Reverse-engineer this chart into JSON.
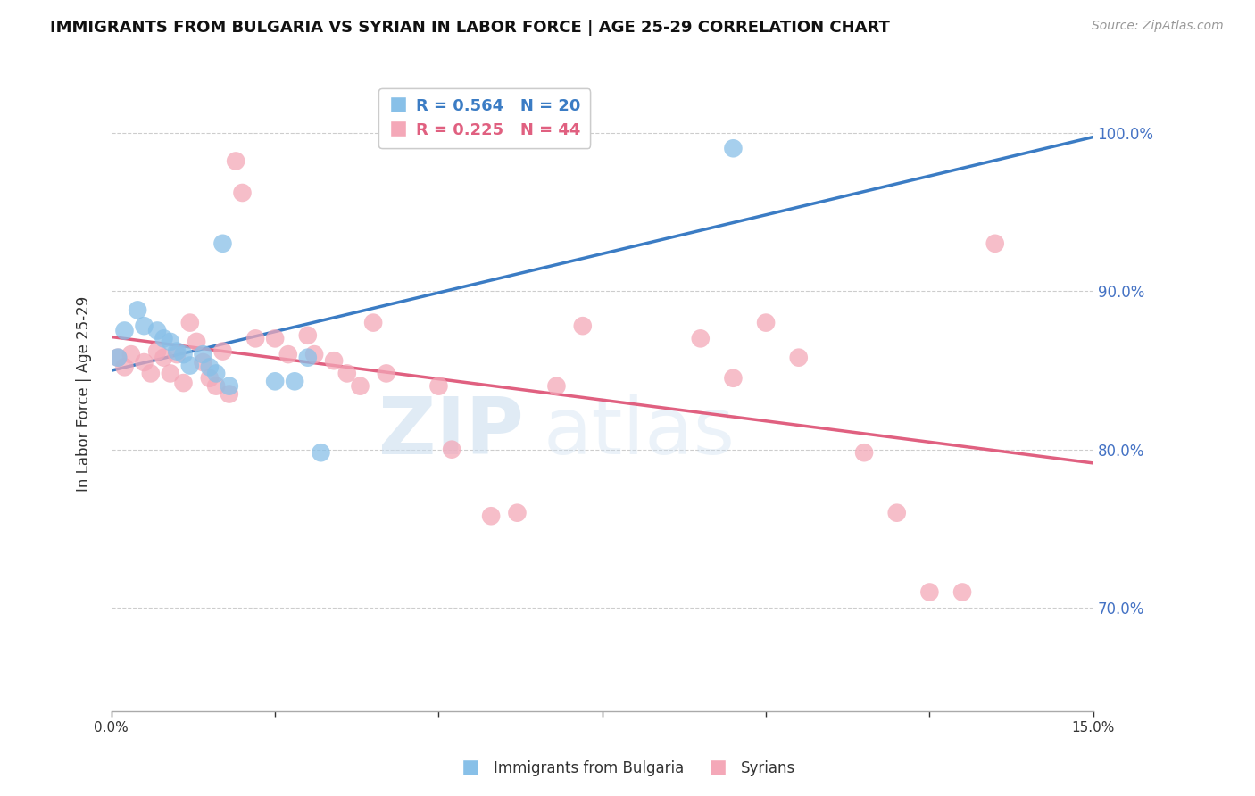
{
  "title": "IMMIGRANTS FROM BULGARIA VS SYRIAN IN LABOR FORCE | AGE 25-29 CORRELATION CHART",
  "source": "Source: ZipAtlas.com",
  "ylabel": "In Labor Force | Age 25-29",
  "xlim": [
    0.0,
    0.15
  ],
  "ylim": [
    0.635,
    1.035
  ],
  "yticks": [
    0.7,
    0.8,
    0.9,
    1.0
  ],
  "xticks": [
    0.0,
    0.025,
    0.05,
    0.075,
    0.1,
    0.125,
    0.15
  ],
  "bulgaria_R": 0.564,
  "bulgaria_N": 20,
  "syria_R": 0.225,
  "syria_N": 44,
  "bulgaria_color": "#88C0E8",
  "syria_color": "#F4A8B8",
  "bulgaria_line_color": "#3B7CC4",
  "syria_line_color": "#E06080",
  "watermark_zip": "ZIP",
  "watermark_atlas": "atlas",
  "bulgaria_x": [
    0.001,
    0.002,
    0.004,
    0.005,
    0.007,
    0.008,
    0.009,
    0.01,
    0.011,
    0.012,
    0.014,
    0.015,
    0.016,
    0.017,
    0.018,
    0.025,
    0.028,
    0.03,
    0.032,
    0.095
  ],
  "bulgaria_y": [
    0.858,
    0.875,
    0.888,
    0.878,
    0.875,
    0.87,
    0.868,
    0.862,
    0.86,
    0.853,
    0.86,
    0.852,
    0.848,
    0.93,
    0.84,
    0.843,
    0.843,
    0.858,
    0.798,
    0.99
  ],
  "syria_x": [
    0.001,
    0.002,
    0.003,
    0.005,
    0.006,
    0.007,
    0.008,
    0.009,
    0.01,
    0.011,
    0.012,
    0.013,
    0.014,
    0.015,
    0.016,
    0.017,
    0.018,
    0.019,
    0.02,
    0.022,
    0.025,
    0.027,
    0.03,
    0.031,
    0.034,
    0.036,
    0.038,
    0.04,
    0.042,
    0.05,
    0.052,
    0.058,
    0.062,
    0.068,
    0.072,
    0.09,
    0.095,
    0.1,
    0.105,
    0.115,
    0.12,
    0.125,
    0.13,
    0.135
  ],
  "syria_y": [
    0.858,
    0.852,
    0.86,
    0.855,
    0.848,
    0.862,
    0.858,
    0.848,
    0.86,
    0.842,
    0.88,
    0.868,
    0.855,
    0.845,
    0.84,
    0.862,
    0.835,
    0.982,
    0.962,
    0.87,
    0.87,
    0.86,
    0.872,
    0.86,
    0.856,
    0.848,
    0.84,
    0.88,
    0.848,
    0.84,
    0.8,
    0.758,
    0.76,
    0.84,
    0.878,
    0.87,
    0.845,
    0.88,
    0.858,
    0.798,
    0.76,
    0.71,
    0.71,
    0.93
  ]
}
